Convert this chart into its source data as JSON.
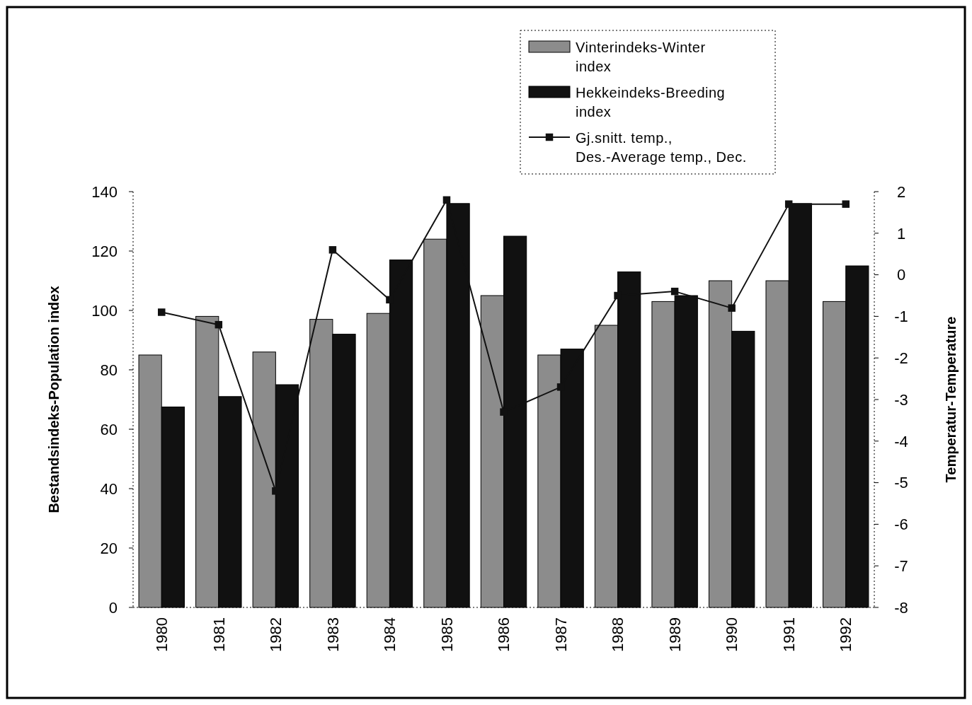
{
  "chart_data": {
    "type": "bar",
    "categories": [
      "1980",
      "1981",
      "1982",
      "1983",
      "1984",
      "1985",
      "1986",
      "1987",
      "1988",
      "1989",
      "1990",
      "1991",
      "1992"
    ],
    "ylabel": "Bestandsindeks-Population index",
    "y2label": "Temperatur-Temperature",
    "ylim": [
      0,
      140
    ],
    "yticks": [
      0,
      20,
      40,
      60,
      80,
      100,
      120,
      140
    ],
    "y2lim": [
      -8,
      2
    ],
    "y2ticks": [
      -8,
      -7,
      -6,
      -5,
      -4,
      -3,
      -2,
      -1,
      0,
      1,
      2
    ],
    "grid": false,
    "legend": "top right",
    "series": [
      {
        "name": "Vinterindeks-Winter index",
        "color": "#8c8c8c",
        "values": [
          85,
          98,
          86,
          97,
          99,
          124,
          105,
          85,
          95,
          103,
          110,
          110,
          103
        ]
      },
      {
        "name": "Hekkeindeks-Breeding index",
        "color": "#111111",
        "values": [
          67.5,
          71,
          75,
          92,
          117,
          136,
          125,
          87,
          113,
          105,
          93,
          136,
          115
        ]
      },
      {
        "name": "Gj.snitt. temp., Des.-Average temp., Dec.",
        "type": "line",
        "axis": "y2",
        "marker": "square",
        "line_style": "solid",
        "color": "#111111",
        "values": [
          -0.9,
          -1.2,
          -5.2,
          0.6,
          -0.6,
          1.8,
          -3.3,
          -2.7,
          -0.5,
          -0.4,
          -0.8,
          1.7,
          1.7
        ]
      }
    ]
  }
}
